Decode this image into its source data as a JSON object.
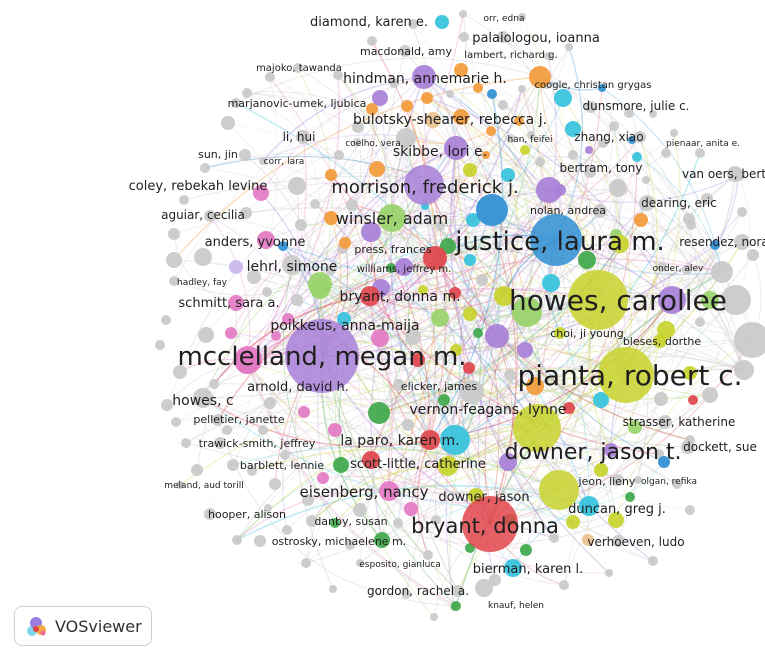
{
  "app": {
    "name": "VOSviewer"
  },
  "colors": {
    "purple": "#a880d8",
    "blue": "#2f8fd3",
    "yellow": "#c8d22c",
    "red": "#e0454b",
    "green": "#3fa84b",
    "pink": "#e37ac3",
    "orange": "#f39a3a",
    "cyan": "#35c2dd",
    "lime": "#99d36a",
    "lavender": "#c9b7ee",
    "grey": "#c9c9c9",
    "tan": "#e9c28e"
  },
  "nodes": [
    {
      "label": "mcclelland, megan m.",
      "color": "purple",
      "size": 10
    },
    {
      "label": "howes, carollee",
      "color": "yellow",
      "size": 10
    },
    {
      "label": "pianta, robert c.",
      "color": "yellow",
      "size": 9
    },
    {
      "label": "justice, laura m.",
      "color": "blue",
      "size": 9
    },
    {
      "label": "downer, jason t.",
      "color": "yellow",
      "size": 8
    },
    {
      "label": "bryant, donna",
      "color": "red",
      "size": 8
    },
    {
      "label": "morrison, frederick j.",
      "color": "purple",
      "size": 7
    },
    {
      "label": "winsler, adam",
      "color": "lime",
      "size": 6
    },
    {
      "label": "vernon-feagans, lynne",
      "color": "grey",
      "size": 5
    },
    {
      "label": "eisenberg, nancy",
      "color": "pink",
      "size": 5
    },
    {
      "label": "bryant, donna m.",
      "color": "red",
      "size": 5
    },
    {
      "label": "poikkeus, anna-maija",
      "color": "lime",
      "size": 5
    },
    {
      "label": "hindman, annemarie h.",
      "color": "purple",
      "size": 5
    },
    {
      "label": "skibbe, lori e.",
      "color": "purple",
      "size": 5
    },
    {
      "label": "bulotsky-shearer, rebecca j.",
      "color": "orange",
      "size": 5
    },
    {
      "label": "la paro, karen m.",
      "color": "red",
      "size": 5
    },
    {
      "label": "scott-little, catherine",
      "color": "yellow",
      "size": 5
    },
    {
      "label": "lehrl, simone",
      "color": "grey",
      "size": 5
    },
    {
      "label": "anders, yvonne",
      "color": "pink",
      "size": 4
    },
    {
      "label": "bierman, karen l.",
      "color": "cyan",
      "size": 4
    },
    {
      "label": "downer, jason",
      "color": "yellow",
      "size": 4
    },
    {
      "label": "duncan, greg j.",
      "color": "cyan",
      "size": 4
    },
    {
      "label": "howes, c",
      "color": "grey",
      "size": 4
    },
    {
      "label": "arnold, david h.",
      "color": "pink",
      "size": 4
    },
    {
      "label": "schmitt, sara a.",
      "color": "pink",
      "size": 4
    },
    {
      "label": "coley, rebekah levine",
      "color": "grey",
      "size": 4
    },
    {
      "label": "diamond, karen e.",
      "color": "cyan",
      "size": 4
    },
    {
      "label": "van oers, bert",
      "color": "grey",
      "size": 4
    },
    {
      "label": "resendez, nora",
      "color": "grey",
      "size": 4
    },
    {
      "label": "palaiologou, ioanna",
      "color": "grey",
      "size": 4
    },
    {
      "label": "dunsmore, julie c.",
      "color": "grey",
      "size": 3
    },
    {
      "label": "strasser, katherine",
      "color": "grey",
      "size": 3
    },
    {
      "label": "dockett, sue",
      "color": "grey",
      "size": 3
    },
    {
      "label": "bertram, tony",
      "color": "grey",
      "size": 3
    },
    {
      "label": "dearing, eric",
      "color": "grey",
      "size": 3
    },
    {
      "label": "nolan, andrea",
      "color": "grey",
      "size": 3
    },
    {
      "label": "zhang, xiao",
      "color": "grey",
      "size": 3
    },
    {
      "label": "choi, ji young",
      "color": "yellow",
      "size": 3
    },
    {
      "label": "bleses, dorthe",
      "color": "yellow",
      "size": 3
    },
    {
      "label": "elicker, james",
      "color": "grey",
      "size": 3
    },
    {
      "label": "jeon, lieny",
      "color": "grey",
      "size": 3
    },
    {
      "label": "verhoeven, ludo",
      "color": "grey",
      "size": 3
    },
    {
      "label": "gordon, rachel a.",
      "color": "grey",
      "size": 3
    },
    {
      "label": "ostrosky, michaelene m.",
      "color": "grey",
      "size": 3
    },
    {
      "label": "danby, susan",
      "color": "grey",
      "size": 3
    },
    {
      "label": "hooper, alison",
      "color": "grey",
      "size": 3
    },
    {
      "label": "barblett, lennie",
      "color": "grey",
      "size": 3
    },
    {
      "label": "trawick-smith, jeffrey",
      "color": "grey",
      "size": 3
    },
    {
      "label": "pelletier, janette",
      "color": "grey",
      "size": 3
    },
    {
      "label": "aguiar, cecilia",
      "color": "grey",
      "size": 3
    },
    {
      "label": "li, hui",
      "color": "grey",
      "size": 3
    },
    {
      "label": "sun, jin",
      "color": "grey",
      "size": 3
    },
    {
      "label": "macdonald, amy",
      "color": "grey",
      "size": 3
    },
    {
      "label": "marjanovic-umek, ljubica",
      "color": "grey",
      "size": 2
    },
    {
      "label": "majoko, tawanda",
      "color": "grey",
      "size": 2
    },
    {
      "label": "orr, edna",
      "color": "grey",
      "size": 2
    },
    {
      "label": "lambert, richard g.",
      "color": "grey",
      "size": 2
    },
    {
      "label": "coogle, christan grygas",
      "color": "grey",
      "size": 2
    },
    {
      "label": "coelho, vera",
      "color": "grey",
      "size": 2
    },
    {
      "label": "han, feifei",
      "color": "grey",
      "size": 2
    },
    {
      "label": "corr, lara",
      "color": "grey",
      "size": 2
    },
    {
      "label": "pienaar, anita e.",
      "color": "grey",
      "size": 2
    },
    {
      "label": "press, frances",
      "color": "grey",
      "size": 2
    },
    {
      "label": "williams, jeffrey m.",
      "color": "grey",
      "size": 2
    },
    {
      "label": "hadley, fay",
      "color": "grey",
      "size": 2
    },
    {
      "label": "onder, alev",
      "color": "grey",
      "size": 2
    },
    {
      "label": "olgan, refika",
      "color": "grey",
      "size": 2
    },
    {
      "label": "meland, aud torill",
      "color": "grey",
      "size": 2
    },
    {
      "label": "esposito, gianluca",
      "color": "grey",
      "size": 2
    },
    {
      "label": "knauf, helen",
      "color": "grey",
      "size": 2
    }
  ]
}
